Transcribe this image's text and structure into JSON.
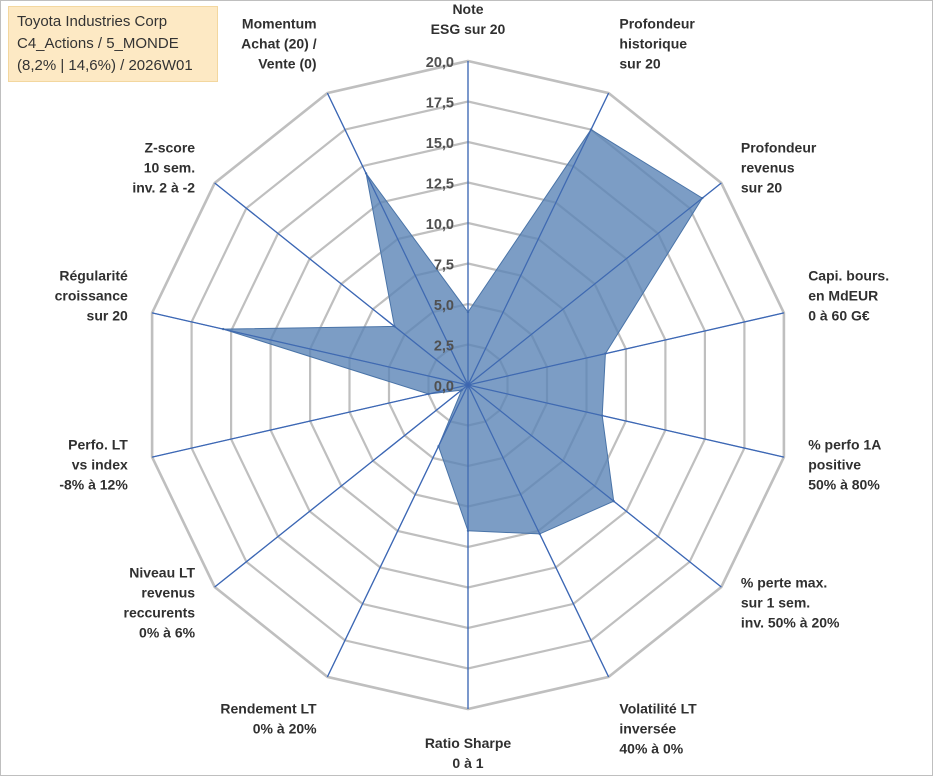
{
  "info_box": {
    "line1": "Toyota Industries Corp",
    "line2": "C4_Actions / 5_MONDE",
    "line3": "(8,2% | 14,6%) / 2026W01"
  },
  "chart_data": {
    "type": "radar",
    "title": "Toyota Industries Corp",
    "rlim": [
      0,
      20
    ],
    "ticks": [
      "0,0",
      "2,5",
      "5,0",
      "7,5",
      "10,0",
      "12,5",
      "15,0",
      "17,5",
      "20,0"
    ],
    "tick_values": [
      0,
      2.5,
      5,
      7.5,
      10,
      12.5,
      15,
      17.5,
      20
    ],
    "grid": true,
    "fill_color": "#5b84b7",
    "fill_opacity": 0.8,
    "spoke_color": "#4472c4",
    "grid_color": "#bfbfbf",
    "axes": [
      {
        "lines": [
          "Note",
          "ESG sur 20"
        ]
      },
      {
        "lines": [
          "Profondeur",
          "historique",
          "sur 20"
        ]
      },
      {
        "lines": [
          "Profondeur",
          "revenus",
          "sur 20"
        ]
      },
      {
        "lines": [
          "Capi. bours.",
          "en MdEUR",
          "0 à 60 G€"
        ]
      },
      {
        "lines": [
          "% perfo 1A",
          "positive",
          "50% à 80%"
        ]
      },
      {
        "lines": [
          "% perte max.",
          "sur 1 sem.",
          "inv. 50% à 20%"
        ]
      },
      {
        "lines": [
          "Volatilité LT",
          "inversée",
          "40% à 0%"
        ]
      },
      {
        "lines": [
          "Ratio Sharpe",
          "0 à 1"
        ]
      },
      {
        "lines": [
          "Rendement LT",
          "0% à 20%"
        ]
      },
      {
        "lines": [
          "Niveau LT",
          "revenus",
          "reccurents",
          "0% à 6%"
        ]
      },
      {
        "lines": [
          "Perfo. LT",
          "vs index",
          "-8% à 12%"
        ]
      },
      {
        "lines": [
          "Régularité",
          "croissance",
          "sur 20"
        ]
      },
      {
        "lines": [
          "Z-score",
          "10 sem.",
          "inv. 2 à -2"
        ]
      },
      {
        "lines": [
          "Momentum",
          "Achat (20) /",
          "Vente (0)"
        ]
      }
    ],
    "series": [
      {
        "name": "Toyota Industries Corp",
        "values": [
          4.5,
          17.5,
          18.5,
          8.7,
          8.5,
          11.5,
          10.2,
          9.0,
          4.2,
          0.5,
          2.5,
          15.5,
          5.8,
          14.5
        ]
      }
    ]
  }
}
